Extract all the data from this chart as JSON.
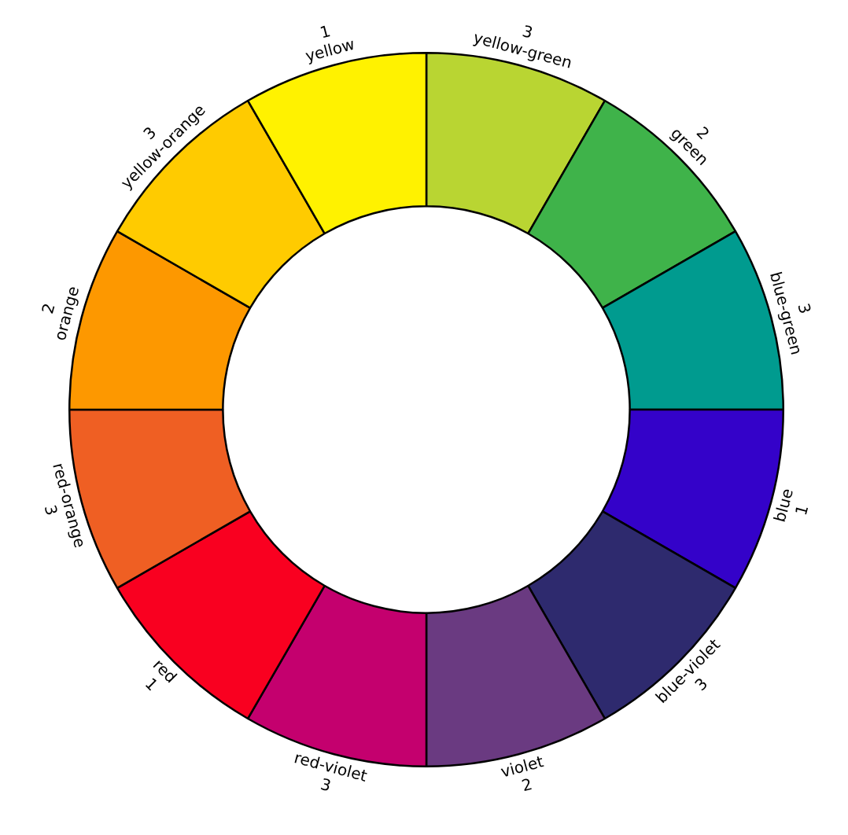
{
  "chart_data": {
    "type": "donut",
    "categories": [
      "yellow-green",
      "green",
      "blue-green",
      "blue",
      "blue-violet",
      "violet",
      "red-violet",
      "red",
      "red-orange",
      "orange",
      "yellow-orange",
      "yellow"
    ],
    "values": [
      8.333,
      8.333,
      8.333,
      8.333,
      8.333,
      8.333,
      8.333,
      8.333,
      8.333,
      8.333,
      8.333,
      8.333
    ],
    "annotations": [
      "3",
      "2",
      "3",
      "1",
      "3",
      "2",
      "3",
      "1",
      "3",
      "2",
      "3",
      "1"
    ],
    "colors": [
      "#b9d532",
      "#3fb34a",
      "#009b8f",
      "#3402c9",
      "#2e2a6e",
      "#6a3a81",
      "#c4006e",
      "#f90020",
      "#ef5f23",
      "#fd9800",
      "#ffcb00",
      "#fff200"
    ],
    "legend": false
  }
}
